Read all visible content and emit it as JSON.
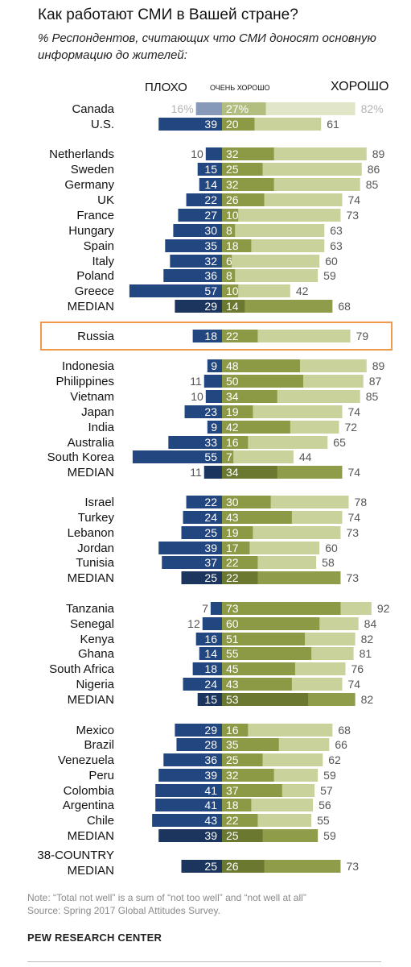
{
  "header": {
    "title": "Как работают СМИ в Вашей стране?",
    "subtitle": "% Респондентов, считающих что СМИ доносят основную информацию до жителей:"
  },
  "legend": {
    "bad": "ПЛОХО",
    "very_good": "ОЧЕНЬ ХОРОШО",
    "good": "ХОРОШО"
  },
  "footer": {
    "note": "Note: “Total not well” is a sum of “not too well” and “not well at all”",
    "survey": "Source: Spring 2017 Global Attitudes Survey.",
    "source": "PEW RESEARCH CENTER"
  },
  "colors": {
    "bad": "#22467f",
    "bad_median": "#1b355e",
    "very_good": "#8c9a45",
    "very_good_median": "#6b7830",
    "good": "#c9d29a",
    "good_median": "#8f9c4a",
    "highlight": "#f0994a",
    "value_dark": "#555555",
    "value_light": "#b3b3b3"
  },
  "chart_data": {
    "type": "bar",
    "orientation": "horizontal",
    "stacking": "diverging",
    "series": [
      {
        "name": "ПЛОХО",
        "key": "bad"
      },
      {
        "name": "ОЧЕНЬ ХОРОШО",
        "key": "very_good"
      },
      {
        "name": "ХОРОШО",
        "key": "good"
      }
    ],
    "rows": [
      {
        "label": "Canada",
        "bad": 16,
        "very_good": 27,
        "good": 82,
        "bad_label": "16%",
        "very_good_label": "27%",
        "good_label": "82%",
        "bad_outside": true,
        "faded": true
      },
      {
        "label": "U.S.",
        "bad": 39,
        "very_good": 20,
        "good": 61
      },
      {
        "label": "Netherlands",
        "bad": 10,
        "very_good": 32,
        "good": 89,
        "bad_outside": true
      },
      {
        "label": "Sweden",
        "bad": 15,
        "very_good": 25,
        "good": 86
      },
      {
        "label": "Germany",
        "bad": 14,
        "very_good": 32,
        "good": 85
      },
      {
        "label": "UK",
        "bad": 22,
        "very_good": 26,
        "good": 74
      },
      {
        "label": "France",
        "bad": 27,
        "very_good": 10,
        "good": 73
      },
      {
        "label": "Hungary",
        "bad": 30,
        "very_good": 8,
        "good": 63
      },
      {
        "label": "Spain",
        "bad": 35,
        "very_good": 18,
        "good": 63
      },
      {
        "label": "Italy",
        "bad": 32,
        "very_good": 6,
        "good": 60
      },
      {
        "label": "Poland",
        "bad": 36,
        "very_good": 8,
        "good": 59
      },
      {
        "label": "Greece",
        "bad": 57,
        "very_good": 10,
        "good": 42
      },
      {
        "label": "MEDIAN",
        "bad": 29,
        "very_good": 14,
        "good": 68,
        "median": true
      },
      {
        "label": "Russia",
        "bad": 18,
        "very_good": 22,
        "good": 79,
        "highlight": true
      },
      {
        "label": "Indonesia",
        "bad": 9,
        "very_good": 48,
        "good": 89
      },
      {
        "label": "Philippines",
        "bad": 11,
        "very_good": 50,
        "good": 87,
        "bad_outside": true
      },
      {
        "label": "Vietnam",
        "bad": 10,
        "very_good": 34,
        "good": 85,
        "bad_outside": true
      },
      {
        "label": "Japan",
        "bad": 23,
        "very_good": 19,
        "good": 74
      },
      {
        "label": "India",
        "bad": 9,
        "very_good": 42,
        "good": 72
      },
      {
        "label": "Australia",
        "bad": 33,
        "very_good": 16,
        "good": 65
      },
      {
        "label": "South Korea",
        "bad": 55,
        "very_good": 7,
        "good": 44
      },
      {
        "label": "MEDIAN",
        "bad": 11,
        "very_good": 34,
        "good": 74,
        "median": true,
        "bad_outside": true
      },
      {
        "label": "Israel",
        "bad": 22,
        "very_good": 30,
        "good": 78
      },
      {
        "label": "Turkey",
        "bad": 24,
        "very_good": 43,
        "good": 74
      },
      {
        "label": "Lebanon",
        "bad": 25,
        "very_good": 19,
        "good": 73
      },
      {
        "label": "Jordan",
        "bad": 39,
        "very_good": 17,
        "good": 60
      },
      {
        "label": "Tunisia",
        "bad": 37,
        "very_good": 22,
        "good": 58
      },
      {
        "label": "MEDIAN",
        "bad": 25,
        "very_good": 22,
        "good": 73,
        "median": true
      },
      {
        "label": "Tanzania",
        "bad": 7,
        "very_good": 73,
        "good": 92,
        "bad_outside": true
      },
      {
        "label": "Senegal",
        "bad": 12,
        "very_good": 60,
        "good": 84,
        "bad_outside": true
      },
      {
        "label": "Kenya",
        "bad": 16,
        "very_good": 51,
        "good": 82
      },
      {
        "label": "Ghana",
        "bad": 14,
        "very_good": 55,
        "good": 81
      },
      {
        "label": "South Africa",
        "bad": 18,
        "very_good": 45,
        "good": 76
      },
      {
        "label": "Nigeria",
        "bad": 24,
        "very_good": 43,
        "good": 74
      },
      {
        "label": "MEDIAN",
        "bad": 15,
        "very_good": 53,
        "good": 82,
        "median": true
      },
      {
        "label": "Mexico",
        "bad": 29,
        "very_good": 16,
        "good": 68
      },
      {
        "label": "Brazil",
        "bad": 28,
        "very_good": 35,
        "good": 66
      },
      {
        "label": "Venezuela",
        "bad": 36,
        "very_good": 25,
        "good": 62
      },
      {
        "label": "Peru",
        "bad": 39,
        "very_good": 32,
        "good": 59
      },
      {
        "label": "Colombia",
        "bad": 41,
        "very_good": 37,
        "good": 57
      },
      {
        "label": "Argentina",
        "bad": 41,
        "very_good": 18,
        "good": 56
      },
      {
        "label": "Chile",
        "bad": 43,
        "very_good": 22,
        "good": 55
      },
      {
        "label": "MEDIAN",
        "bad": 39,
        "very_good": 25,
        "good": 59,
        "median": true
      },
      {
        "label": "38-COUNTRY MEDIAN",
        "label_lines": [
          "38-COUNTRY",
          "MEDIAN"
        ],
        "bad": 25,
        "very_good": 26,
        "good": 73,
        "median": true
      }
    ]
  }
}
